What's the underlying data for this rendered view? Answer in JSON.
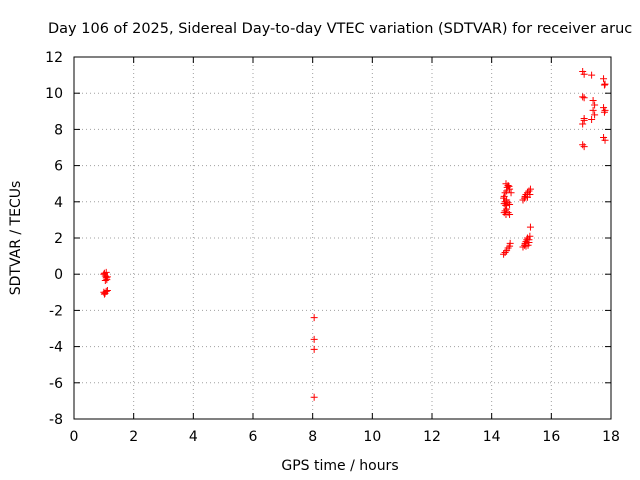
{
  "chart_data": {
    "type": "scatter",
    "title": "Day 106 of 2025, Sidereal Day-to-day VTEC variation (SDTVAR) for receiver aruc",
    "xlabel": "GPS time / hours",
    "ylabel": "SDTVAR / TECUs",
    "xlim": [
      0,
      18
    ],
    "ylim": [
      -8,
      12
    ],
    "xticks": [
      0,
      2,
      4,
      6,
      8,
      10,
      12,
      14,
      16,
      18
    ],
    "yticks": [
      -8,
      -6,
      -4,
      -2,
      0,
      2,
      4,
      6,
      8,
      10,
      12
    ],
    "xtick_labels": [
      "0",
      "2",
      "4",
      "6",
      "8",
      "10",
      "12",
      "14",
      "16",
      "18"
    ],
    "ytick_labels": [
      "-8",
      "-6",
      "-4",
      "-2",
      "0",
      "2",
      "4",
      "6",
      "8",
      "10",
      "12"
    ],
    "grid": true,
    "marker": "+",
    "color": "#ff0000",
    "series": [
      {
        "name": "SDTVAR",
        "points": [
          [
            1.02,
            0.05
          ],
          [
            1.05,
            -0.1
          ],
          [
            1.08,
            -0.2
          ],
          [
            1.1,
            -0.3
          ],
          [
            1.05,
            -0.35
          ],
          [
            1.12,
            -0.15
          ],
          [
            1.0,
            0.0
          ],
          [
            1.08,
            0.1
          ],
          [
            1.0,
            -1.0
          ],
          [
            1.04,
            -1.05
          ],
          [
            1.08,
            -0.95
          ],
          [
            1.12,
            -0.9
          ],
          [
            1.02,
            -1.1
          ],
          [
            8.05,
            -2.4
          ],
          [
            8.05,
            -3.6
          ],
          [
            8.05,
            -4.15
          ],
          [
            8.05,
            -6.8
          ],
          [
            14.4,
            1.1
          ],
          [
            14.45,
            1.2
          ],
          [
            14.5,
            1.3
          ],
          [
            14.55,
            1.45
          ],
          [
            14.6,
            1.55
          ],
          [
            14.62,
            1.7
          ],
          [
            14.42,
            3.4
          ],
          [
            14.45,
            3.5
          ],
          [
            14.5,
            3.6
          ],
          [
            14.55,
            3.4
          ],
          [
            14.6,
            3.3
          ],
          [
            14.48,
            3.3
          ],
          [
            14.42,
            3.9
          ],
          [
            14.45,
            4.0
          ],
          [
            14.5,
            4.1
          ],
          [
            14.55,
            3.95
          ],
          [
            14.6,
            3.85
          ],
          [
            14.47,
            3.8
          ],
          [
            14.4,
            4.2
          ],
          [
            14.42,
            4.3
          ],
          [
            14.45,
            4.5
          ],
          [
            14.5,
            4.6
          ],
          [
            14.52,
            4.8
          ],
          [
            14.55,
            4.9
          ],
          [
            14.6,
            4.7
          ],
          [
            14.65,
            4.5
          ],
          [
            14.48,
            5.0
          ],
          [
            14.58,
            4.85
          ],
          [
            15.05,
            1.5
          ],
          [
            15.1,
            1.6
          ],
          [
            15.12,
            1.7
          ],
          [
            15.15,
            1.8
          ],
          [
            15.18,
            1.9
          ],
          [
            15.2,
            2.0
          ],
          [
            15.22,
            1.6
          ],
          [
            15.25,
            1.75
          ],
          [
            15.28,
            2.1
          ],
          [
            15.3,
            2.6
          ],
          [
            15.25,
            1.9
          ],
          [
            15.15,
            1.55
          ],
          [
            15.05,
            4.1
          ],
          [
            15.1,
            4.2
          ],
          [
            15.12,
            4.3
          ],
          [
            15.15,
            4.4
          ],
          [
            15.2,
            4.5
          ],
          [
            15.25,
            4.6
          ],
          [
            15.28,
            4.4
          ],
          [
            15.3,
            4.7
          ],
          [
            15.2,
            4.25
          ],
          [
            17.05,
            11.2
          ],
          [
            17.1,
            11.05
          ],
          [
            17.05,
            9.8
          ],
          [
            17.1,
            9.75
          ],
          [
            17.1,
            8.6
          ],
          [
            17.05,
            8.3
          ],
          [
            17.1,
            8.5
          ],
          [
            17.05,
            7.15
          ],
          [
            17.1,
            7.05
          ],
          [
            17.35,
            11.0
          ],
          [
            17.4,
            9.6
          ],
          [
            17.45,
            9.35
          ],
          [
            17.4,
            9.05
          ],
          [
            17.45,
            8.8
          ],
          [
            17.35,
            8.55
          ],
          [
            17.75,
            10.8
          ],
          [
            17.8,
            10.5
          ],
          [
            17.78,
            10.45
          ],
          [
            17.75,
            9.2
          ],
          [
            17.8,
            9.05
          ],
          [
            17.78,
            8.95
          ],
          [
            17.75,
            7.55
          ],
          [
            17.8,
            7.4
          ]
        ]
      }
    ]
  }
}
